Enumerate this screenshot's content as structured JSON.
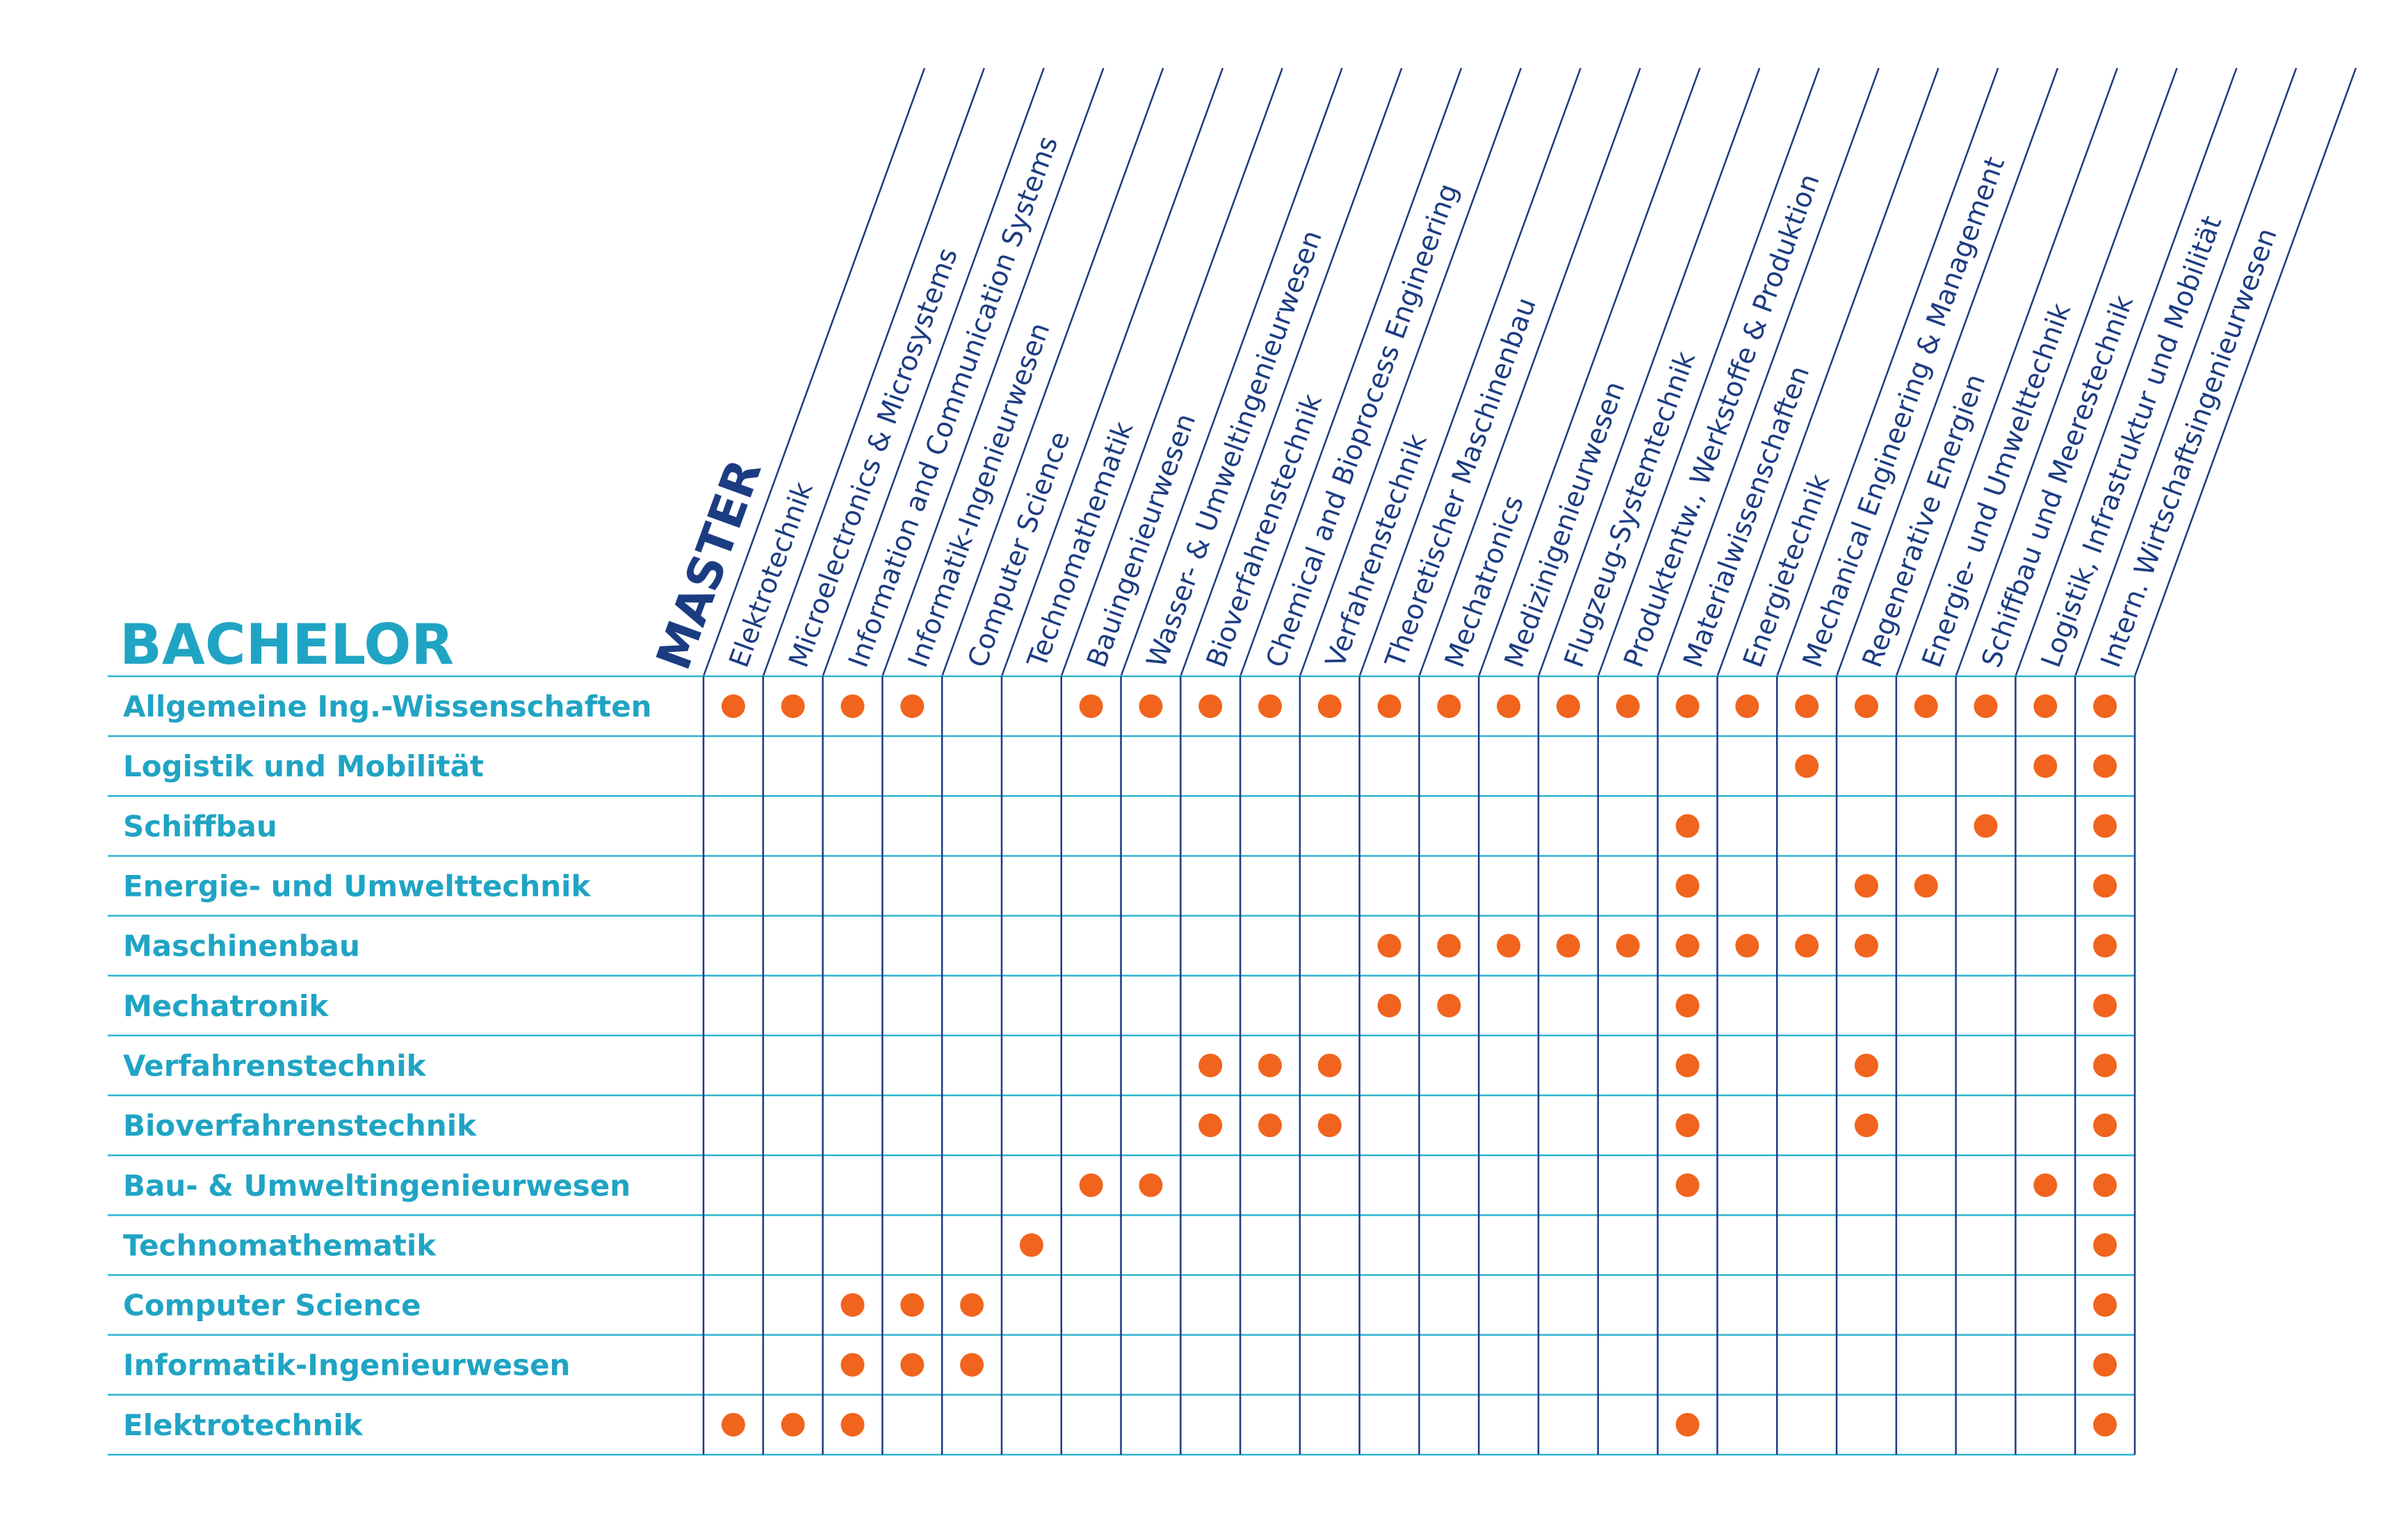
{
  "headers": {
    "master": "MASTER",
    "bachelor": "BACHELOR"
  },
  "colors": {
    "master_text": "#1c3c82",
    "bachelor_text": "#20a4c4",
    "grid": "#2db4d0",
    "column_slant": "#1c3c82",
    "dot": "#f0641e"
  },
  "masters": [
    "Elektrotechnik",
    "Microelectronics & Microsystems",
    "Information and Communication Systems",
    "Informatik-Ingenieurwesen",
    "Computer Science",
    "Technomathematik",
    "Bauingenieurwesen",
    "Wasser- & Umweltingenieurwesen",
    "Bioverfahrenstechnik",
    "Chemical and Bioprocess Engineering",
    "Verfahrenstechnik",
    "Theoretischer Maschinenbau",
    "Mechatronics",
    "Medizinigenieurwesen",
    "Flugzeug-Systemtechnik",
    "Produktentw., Werkstoffe & Produktion",
    "Materialwissenschaften",
    "Energietechnik",
    "Mechanical Engineering &  Management",
    "Regenerative Energien",
    "Energie- und Umwelttechnik",
    "Schiffbau und Meerestechnik",
    "Logistik, Infrastruktur und Mobilität",
    "Intern. Wirtschaftsingenieurwesen"
  ],
  "bachelors": [
    {
      "label": "Allgemeine Ing.-Wissenschaften",
      "dots": [
        1,
        1,
        1,
        1,
        0,
        0,
        1,
        1,
        1,
        1,
        1,
        1,
        1,
        1,
        1,
        1,
        1,
        1,
        1,
        1,
        1,
        1,
        1,
        1
      ]
    },
    {
      "label": "Logistik und Mobilität",
      "dots": [
        0,
        0,
        0,
        0,
        0,
        0,
        0,
        0,
        0,
        0,
        0,
        0,
        0,
        0,
        0,
        0,
        0,
        0,
        1,
        0,
        0,
        0,
        1,
        1
      ]
    },
    {
      "label": "Schiffbau",
      "dots": [
        0,
        0,
        0,
        0,
        0,
        0,
        0,
        0,
        0,
        0,
        0,
        0,
        0,
        0,
        0,
        0,
        1,
        0,
        0,
        0,
        0,
        1,
        0,
        1
      ]
    },
    {
      "label": "Energie- und Umwelttechnik",
      "dots": [
        0,
        0,
        0,
        0,
        0,
        0,
        0,
        0,
        0,
        0,
        0,
        0,
        0,
        0,
        0,
        0,
        1,
        0,
        0,
        1,
        1,
        0,
        0,
        1
      ]
    },
    {
      "label": "Maschinenbau",
      "dots": [
        0,
        0,
        0,
        0,
        0,
        0,
        0,
        0,
        0,
        0,
        0,
        1,
        1,
        1,
        1,
        1,
        1,
        1,
        1,
        1,
        0,
        0,
        0,
        1
      ]
    },
    {
      "label": "Mechatronik",
      "dots": [
        0,
        0,
        0,
        0,
        0,
        0,
        0,
        0,
        0,
        0,
        0,
        1,
        1,
        0,
        0,
        0,
        1,
        0,
        0,
        0,
        0,
        0,
        0,
        1
      ]
    },
    {
      "label": "Verfahrenstechnik",
      "dots": [
        0,
        0,
        0,
        0,
        0,
        0,
        0,
        0,
        1,
        1,
        1,
        0,
        0,
        0,
        0,
        0,
        1,
        0,
        0,
        1,
        0,
        0,
        0,
        1
      ]
    },
    {
      "label": "Bioverfahrenstechnik",
      "dots": [
        0,
        0,
        0,
        0,
        0,
        0,
        0,
        0,
        1,
        1,
        1,
        0,
        0,
        0,
        0,
        0,
        1,
        0,
        0,
        1,
        0,
        0,
        0,
        1
      ]
    },
    {
      "label": "Bau- & Umweltingenieurwesen",
      "dots": [
        0,
        0,
        0,
        0,
        0,
        0,
        1,
        1,
        0,
        0,
        0,
        0,
        0,
        0,
        0,
        0,
        1,
        0,
        0,
        0,
        0,
        0,
        1,
        1
      ]
    },
    {
      "label": "Technomathematik",
      "dots": [
        0,
        0,
        0,
        0,
        0,
        1,
        0,
        0,
        0,
        0,
        0,
        0,
        0,
        0,
        0,
        0,
        0,
        0,
        0,
        0,
        0,
        0,
        0,
        1
      ]
    },
    {
      "label": "Computer Science",
      "dots": [
        0,
        0,
        1,
        1,
        1,
        0,
        0,
        0,
        0,
        0,
        0,
        0,
        0,
        0,
        0,
        0,
        0,
        0,
        0,
        0,
        0,
        0,
        0,
        1
      ]
    },
    {
      "label": "Informatik-Ingenieurwesen",
      "dots": [
        0,
        0,
        1,
        1,
        1,
        0,
        0,
        0,
        0,
        0,
        0,
        0,
        0,
        0,
        0,
        0,
        0,
        0,
        0,
        0,
        0,
        0,
        0,
        1
      ]
    },
    {
      "label": "Elektrotechnik",
      "dots": [
        1,
        1,
        1,
        0,
        0,
        0,
        0,
        0,
        0,
        0,
        0,
        0,
        0,
        0,
        0,
        0,
        1,
        0,
        0,
        0,
        0,
        0,
        0,
        1
      ]
    }
  ]
}
